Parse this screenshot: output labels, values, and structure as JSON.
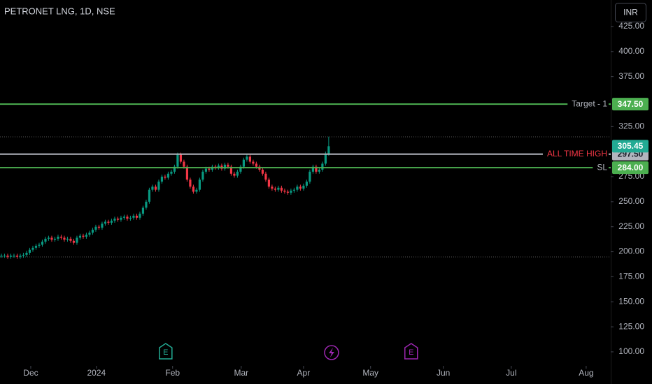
{
  "chart_data": {
    "type": "candlestick",
    "title": "PETRONET LNG, 1D, NSE",
    "currency": "INR",
    "up_color": "#089981",
    "down_color": "#f23645",
    "x": [
      0,
      1,
      2,
      3,
      4,
      5,
      6,
      7,
      8,
      9,
      10,
      11,
      12,
      13,
      14,
      15,
      16,
      17,
      18,
      19,
      20,
      21,
      22,
      23,
      24,
      25,
      26,
      27,
      28,
      29,
      30,
      31,
      32,
      33,
      34,
      35,
      36,
      37,
      38,
      39,
      40,
      41,
      42,
      43,
      44,
      45,
      46,
      47,
      48,
      49,
      50,
      51,
      52,
      53,
      54,
      55,
      56,
      57,
      58,
      59,
      60,
      61,
      62,
      63,
      64,
      65,
      66,
      67,
      68,
      69,
      70,
      71,
      72,
      73,
      74,
      75,
      76,
      77,
      78,
      79,
      80,
      81,
      82,
      83,
      84,
      85,
      86,
      87,
      88,
      89,
      90,
      91,
      92,
      93,
      94,
      95,
      96,
      97,
      98,
      99,
      100,
      101,
      102,
      103,
      104
    ],
    "open": [
      196,
      196,
      196,
      195,
      196,
      196,
      195,
      196,
      197,
      199,
      202,
      204,
      206,
      207,
      210,
      213,
      214,
      212,
      213,
      215,
      214,
      212,
      213,
      211,
      209,
      214,
      216,
      215,
      217,
      219,
      222,
      225,
      224,
      228,
      230,
      229,
      231,
      233,
      232,
      234,
      235,
      233,
      234,
      236,
      234,
      238,
      244,
      250,
      262,
      265,
      262,
      270,
      275,
      274,
      278,
      280,
      285,
      297,
      290,
      285,
      272,
      265,
      260,
      262,
      272,
      280,
      283,
      282,
      285,
      284,
      286,
      283,
      287,
      285,
      278,
      276,
      280,
      285,
      292,
      295,
      290,
      288,
      285,
      282,
      278,
      272,
      265,
      263,
      262,
      264,
      261,
      260,
      259,
      261,
      262,
      265,
      263,
      266,
      270,
      280,
      285,
      280,
      282,
      288,
      298
    ],
    "high": [
      198,
      198,
      198,
      198,
      198,
      198,
      198,
      199,
      201,
      204,
      206,
      208,
      209,
      212,
      215,
      216,
      216,
      215,
      217,
      217,
      216,
      215,
      215,
      213,
      216,
      218,
      218,
      219,
      221,
      224,
      227,
      227,
      230,
      232,
      232,
      233,
      235,
      235,
      236,
      237,
      237,
      236,
      238,
      238,
      240,
      246,
      252,
      264,
      267,
      267,
      272,
      277,
      277,
      280,
      282,
      287,
      299,
      299,
      292,
      287,
      274,
      267,
      264,
      274,
      282,
      285,
      285,
      287,
      287,
      288,
      288,
      289,
      289,
      287,
      280,
      282,
      287,
      294,
      297,
      297,
      292,
      290,
      287,
      284,
      280,
      274,
      267,
      265,
      266,
      266,
      263,
      262,
      263,
      264,
      267,
      267,
      268,
      272,
      282,
      287,
      287,
      284,
      290,
      300,
      315
    ],
    "low": [
      194,
      194,
      193,
      193,
      194,
      193,
      193,
      194,
      195,
      197,
      200,
      202,
      204,
      205,
      208,
      211,
      210,
      210,
      211,
      212,
      210,
      210,
      209,
      207,
      207,
      212,
      213,
      213,
      215,
      217,
      220,
      222,
      222,
      226,
      227,
      227,
      229,
      230,
      230,
      232,
      231,
      231,
      232,
      232,
      232,
      236,
      242,
      248,
      260,
      260,
      260,
      268,
      272,
      272,
      276,
      278,
      283,
      288,
      283,
      270,
      263,
      258,
      258,
      260,
      270,
      278,
      280,
      280,
      282,
      282,
      281,
      281,
      283,
      276,
      274,
      274,
      278,
      283,
      290,
      288,
      286,
      283,
      280,
      276,
      270,
      263,
      261,
      260,
      260,
      259,
      258,
      257,
      257,
      259,
      260,
      261,
      261,
      264,
      268,
      278,
      278,
      278,
      280,
      286,
      296
    ],
    "close": [
      196,
      196,
      195,
      196,
      196,
      195,
      196,
      197,
      199,
      202,
      204,
      206,
      207,
      210,
      213,
      214,
      212,
      213,
      215,
      214,
      212,
      213,
      211,
      209,
      214,
      216,
      215,
      217,
      219,
      222,
      225,
      224,
      228,
      230,
      229,
      231,
      233,
      232,
      234,
      235,
      233,
      234,
      236,
      234,
      238,
      244,
      250,
      262,
      265,
      262,
      270,
      275,
      274,
      278,
      280,
      285,
      297,
      290,
      285,
      272,
      265,
      260,
      262,
      272,
      280,
      283,
      282,
      285,
      284,
      286,
      283,
      287,
      285,
      278,
      276,
      280,
      285,
      292,
      295,
      290,
      288,
      285,
      282,
      278,
      272,
      265,
      263,
      262,
      264,
      261,
      260,
      259,
      261,
      262,
      265,
      263,
      266,
      270,
      280,
      285,
      280,
      282,
      288,
      298,
      305.45
    ],
    "xlim": [
      -0.44,
      193.6
    ],
    "xticks": [
      {
        "value": 9.33,
        "label": "Dec"
      },
      {
        "value": 30.2,
        "label": "2024"
      },
      {
        "value": 54.4,
        "label": "Feb"
      },
      {
        "value": 76.2,
        "label": "Mar"
      },
      {
        "value": 96,
        "label": "Apr"
      },
      {
        "value": 117.3,
        "label": "May"
      },
      {
        "value": 140.4,
        "label": "Jun"
      },
      {
        "value": 162,
        "label": "Jul"
      },
      {
        "value": 185.8,
        "label": "Aug"
      }
    ],
    "ylim": [
      88.8,
      451.5
    ],
    "yticks": [
      {
        "value": 100,
        "label": "100.00"
      },
      {
        "value": 125,
        "label": "125.00"
      },
      {
        "value": 150,
        "label": "150.00"
      },
      {
        "value": 175,
        "label": "175.00"
      },
      {
        "value": 200,
        "label": "200.00"
      },
      {
        "value": 225,
        "label": "225.00"
      },
      {
        "value": 250,
        "label": "250.00"
      },
      {
        "value": 275,
        "label": "275.00"
      },
      {
        "value": 325,
        "label": "325.00"
      },
      {
        "value": 375,
        "label": "375.00"
      },
      {
        "value": 400,
        "label": "400.00"
      },
      {
        "value": 425,
        "label": "425.00"
      }
    ],
    "dotted_levels": [
      314.8,
      194.8
    ],
    "levels": [
      {
        "label": "Target - 1",
        "value": 347.5,
        "value_label": "347.50",
        "color": "#4caf50",
        "text_color": "#b2b5be"
      },
      {
        "label": "ALL TIME HIGH",
        "value": 297.5,
        "value_label": "297.50",
        "color": "#b2b5be",
        "text_color": "#f23645"
      },
      {
        "label": "SL",
        "value": 284,
        "value_label": "284.00",
        "color": "#4caf50",
        "text_color": "#b2b5be"
      }
    ],
    "current_price": {
      "value": 305.45,
      "label": "305.45",
      "color": "#22ab94"
    },
    "events": [
      {
        "label": "E",
        "x": 52.2,
        "color": "#22ab94",
        "shape": "badge"
      },
      {
        "x": 104.9,
        "color": "#9c27b0",
        "shape": "bolt"
      },
      {
        "label": "E",
        "x": 130.2,
        "color": "#9c27b0",
        "shape": "badge"
      }
    ]
  }
}
